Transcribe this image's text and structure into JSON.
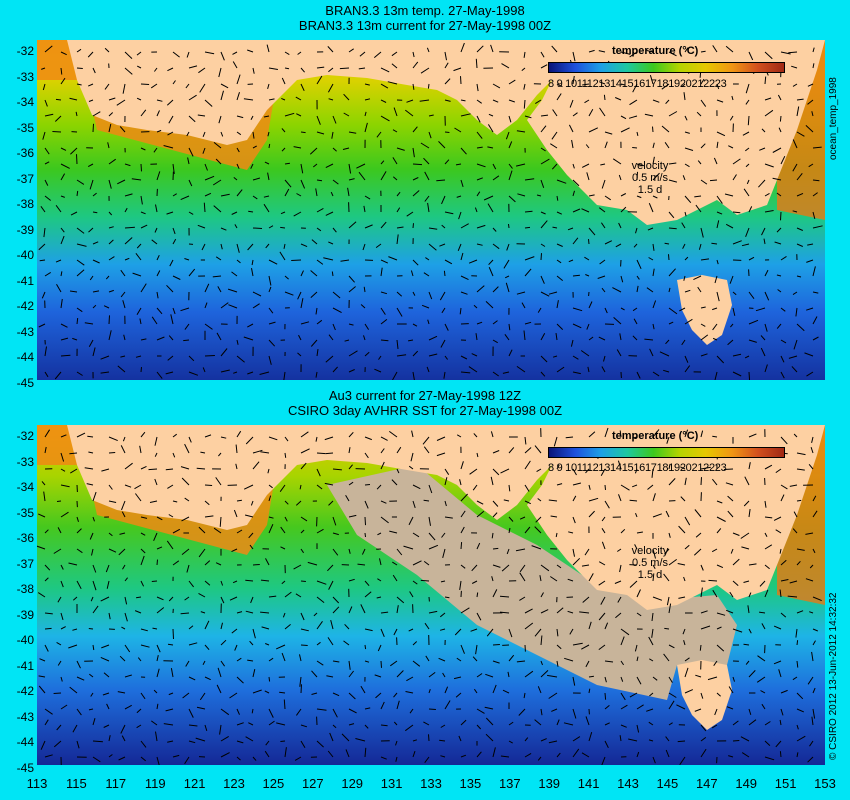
{
  "top_panel": {
    "title_line1": "BRAN3.3 13m temp. 27-May-1998",
    "title_line2": "BRAN3.3 13m current for 27-May-1998 00Z"
  },
  "bottom_panel": {
    "title_line1": "Au3 current for 27-May-1998 12Z",
    "title_line2": "CSIRO 3day AVHRR SST for 27-May-1998 00Z"
  },
  "legend": {
    "title": "temperature (°C)",
    "ticks": "8  9 1011121314151617181920212223",
    "range": [
      8,
      23
    ]
  },
  "velocity_key": {
    "label": "velocity",
    "value": "0.5 m/s",
    "sub": "1.5 d"
  },
  "side_label_top": "ocean_temp_1998",
  "side_label_bottom": "© CSIRO 2012  13-Jun-2012 14:32:32",
  "y_ticks": [
    "-32",
    "-33",
    "-34",
    "-35",
    "-36",
    "-37",
    "-38",
    "-39",
    "-40",
    "-41",
    "-42",
    "-43",
    "-44",
    "-45"
  ],
  "x_ticks": [
    "113",
    "115",
    "117",
    "119",
    "121",
    "123",
    "125",
    "127",
    "129",
    "131",
    "133",
    "135",
    "137",
    "139",
    "141",
    "143",
    "145",
    "147",
    "149",
    "151",
    "153"
  ],
  "colors": {
    "land": "#fdd0a2",
    "cloud_mask": "#c8b49a",
    "background": "#00e5f5"
  }
}
